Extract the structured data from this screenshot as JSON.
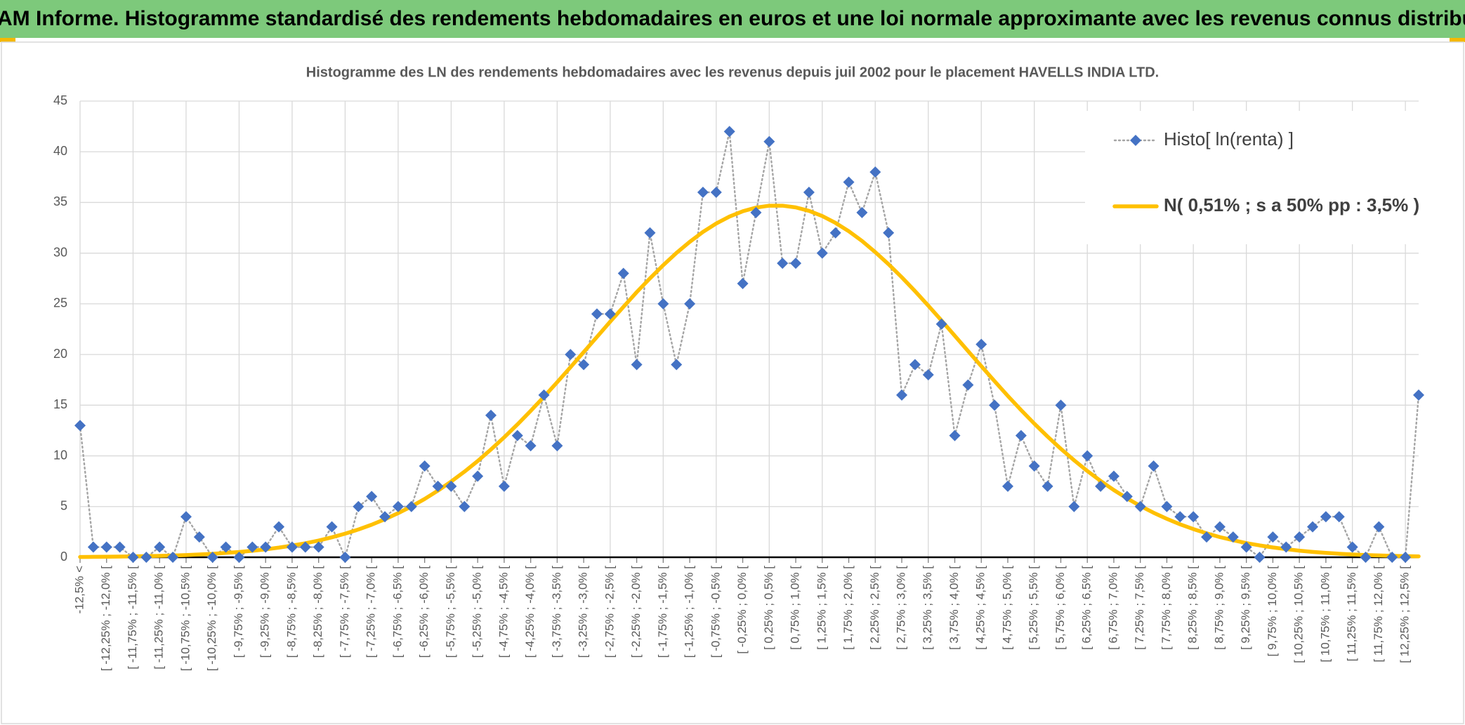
{
  "header": {
    "title": "ADAM Informe. Histogramme standardisé des rendements hebdomadaires en euros et une loi normale approximante avec les revenus connus distribués"
  },
  "chart_data": {
    "type": "line",
    "title": "Histogramme des LN des rendements hebdomadaires avec les revenus depuis juil 2002 pour le placement HAVELLS INDIA LTD.",
    "categories": [
      "-12,5% <",
      null,
      "[ -12,25% ; -12,0% [",
      null,
      "[ -11,75% ; -11,5% [",
      null,
      "[ -11,25% ; -11,0% [",
      null,
      "[ -10,75% ; -10,5% [",
      null,
      "[ -10,25% ; -10,0% [",
      null,
      "[ -9,75% ; -9,5% [",
      null,
      "[ -9,25% ; -9,0% [",
      null,
      "[ -8,75% ; -8,5% [",
      null,
      "[ -8,25% ; -8,0% [",
      null,
      "[ -7,75% ; -7,5% [",
      null,
      "[ -7,25% ; -7,0% [",
      null,
      "[ -6,75% ; -6,5% [",
      null,
      "[ -6,25% ; -6,0% [",
      null,
      "[ -5,75% ; -5,5% [",
      null,
      "[ -5,25% ; -5,0% [",
      null,
      "[ -4,75% ; -4,5% [",
      null,
      "[ -4,25% ; -4,0% [",
      null,
      "[ -3,75% ; -3,5% [",
      null,
      "[ -3,25% ; -3,0% [",
      null,
      "[ -2,75% ; -2,5% [",
      null,
      "[ -2,25% ; -2,0% [",
      null,
      "[ -1,75% ; -1,5% [",
      null,
      "[ -1,25% ; -1,0% [",
      null,
      "[ -0,75% ; -0,5% [",
      null,
      "[ -0,25% ; 0,0% [",
      null,
      "[ 0,25% ; 0,5% [",
      null,
      "[ 0,75% ; 1,0% [",
      null,
      "[ 1,25% ; 1,5% [",
      null,
      "[ 1,75% ; 2,0% [",
      null,
      "[ 2,25% ; 2,5% [",
      null,
      "[ 2,75% ; 3,0% [",
      null,
      "[ 3,25% ; 3,5% [",
      null,
      "[ 3,75% ; 4,0% [",
      null,
      "[ 4,25% ; 4,5% [",
      null,
      "[ 4,75% ; 5,0% [",
      null,
      "[ 5,25% ; 5,5% [",
      null,
      "[ 5,75% ; 6,0% [",
      null,
      "[ 6,25% ; 6,5% [",
      null,
      "[ 6,75% ; 7,0% [",
      null,
      "[ 7,25% ; 7,5% [",
      null,
      "[ 7,75% ; 8,0% [",
      null,
      "[ 8,25% ; 8,5% [",
      null,
      "[ 8,75% ; 9,0% [",
      null,
      "[ 9,25% ; 9,5% [",
      null,
      "[ 9,75% ; 10,0% [",
      null,
      "[ 10,25% ; 10,5% [",
      null,
      "[ 10,75% ; 11,0% [",
      null,
      "[ 11,25% ; 11,5% [",
      null,
      "[ 11,75% ; 12,0% [",
      null,
      "[ 12,25% ; 12,5% [",
      null
    ],
    "series": [
      {
        "name": "Histo[ ln(renta) ]",
        "color": "#4472c4",
        "line_color": "#a5a5a5",
        "marker": "diamond",
        "line_style": "dotted",
        "values": [
          13,
          1,
          1,
          1,
          0,
          0,
          1,
          0,
          4,
          2,
          0,
          1,
          0,
          1,
          1,
          3,
          1,
          1,
          1,
          3,
          0,
          5,
          6,
          4,
          5,
          5,
          9,
          7,
          7,
          5,
          8,
          14,
          7,
          12,
          11,
          16,
          11,
          20,
          19,
          24,
          24,
          28,
          19,
          32,
          25,
          19,
          25,
          36,
          36,
          42,
          27,
          34,
          41,
          29,
          29,
          36,
          30,
          32,
          37,
          34,
          38,
          32,
          16,
          19,
          18,
          23,
          12,
          17,
          21,
          15,
          7,
          12,
          9,
          7,
          15,
          5,
          10,
          7,
          8,
          6,
          5,
          9,
          5,
          4,
          4,
          2,
          3,
          2,
          1,
          0,
          2,
          1,
          2,
          3,
          4,
          4,
          1,
          0,
          3,
          0,
          0,
          16
        ]
      },
      {
        "name": "N( 0,51% ; s a 50% pp : 3,5% )",
        "color": "#ffc000",
        "line_color": "#ffc000",
        "marker": "none",
        "line_style": "solid",
        "values": [
          0.03,
          0.04,
          0.05,
          0.07,
          0.09,
          0.11,
          0.14,
          0.17,
          0.22,
          0.28,
          0.34,
          0.43,
          0.52,
          0.64,
          0.78,
          0.95,
          1.15,
          1.38,
          1.65,
          1.97,
          2.33,
          2.74,
          3.21,
          3.75,
          4.35,
          5.01,
          5.75,
          6.57,
          7.47,
          8.44,
          9.49,
          10.63,
          11.83,
          13.1,
          14.44,
          15.83,
          17.27,
          18.74,
          20.24,
          21.73,
          23.24,
          24.7,
          26.15,
          27.51,
          28.81,
          30.02,
          31.11,
          32.09,
          32.92,
          33.61,
          34.13,
          34.49,
          34.68,
          34.68,
          34.51,
          34.17,
          33.66,
          32.98,
          32.16,
          31.2,
          30.1,
          28.91,
          27.62,
          26.25,
          24.82,
          23.35,
          21.85,
          20.34,
          18.85,
          17.37,
          15.92,
          14.52,
          13.18,
          11.91,
          10.7,
          9.57,
          8.51,
          7.53,
          6.63,
          5.81,
          5.06,
          4.39,
          3.79,
          3.25,
          2.78,
          2.36,
          1.99,
          1.68,
          1.4,
          1.17,
          0.97,
          0.8,
          0.65,
          0.53,
          0.43,
          0.35,
          0.28,
          0.22,
          0.18,
          0.14,
          0.11,
          0.09
        ]
      }
    ],
    "ylim": [
      0,
      45
    ],
    "yticks": [
      0,
      5,
      10,
      15,
      20,
      25,
      30,
      35,
      40,
      45
    ],
    "grid": true,
    "legend": "top-right"
  }
}
